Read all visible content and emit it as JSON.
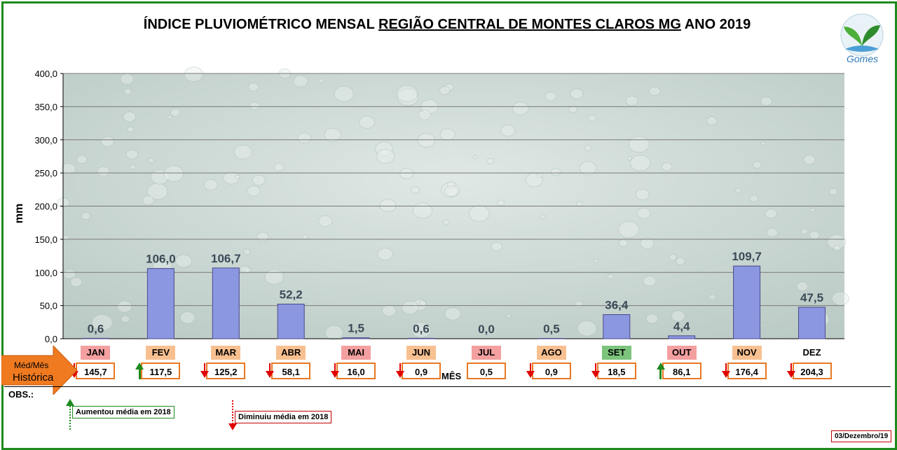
{
  "header": {
    "title_part1": "ÍNDICE PLUVIOMÉTRICO MENSAL ",
    "title_underlined": "REGIÃO CENTRAL DE MONTES CLAROS MG",
    "title_part2": " ANO 2019",
    "logo_text": "Gomes"
  },
  "chart_data": {
    "type": "bar",
    "categories": [
      "JAN",
      "FEV",
      "MAR",
      "ABR",
      "MAI",
      "JUN",
      "JUL",
      "AGO",
      "SET",
      "OUT",
      "NOV",
      "DEZ"
    ],
    "values": [
      0.6,
      106.0,
      106.7,
      52.2,
      1.5,
      0.6,
      0.0,
      0.5,
      36.4,
      4.4,
      109.7,
      47.5
    ],
    "value_labels": [
      "0,6",
      "106,0",
      "106,7",
      "52,2",
      "1,5",
      "0,6",
      "0,0",
      "0,5",
      "36,4",
      "4,4",
      "109,7",
      "47,5"
    ],
    "ylabel": "mm",
    "xlabel": "MÊS",
    "ylim": [
      0,
      400
    ],
    "yticks": [
      "0,0",
      "50,0",
      "100,0",
      "150,0",
      "200,0",
      "250,0",
      "300,0",
      "350,0",
      "400,0"
    ],
    "grid": true,
    "colors": {
      "bar": "#8b97e0",
      "bar_border": "#4a4a8a",
      "plot_bg": "#c9d6d2"
    }
  },
  "historical": {
    "label_line1": "Méd/Mês",
    "label_line2": "Histórica",
    "values": [
      "145,7",
      "117,5",
      "125,2",
      "58,1",
      "16,0",
      "0,9",
      "0,5",
      "0,9",
      "18,5",
      "86,1",
      "176,4",
      "204,3"
    ],
    "trend": [
      "down",
      "up",
      "down",
      "down",
      "down",
      "down",
      "none",
      "down",
      "down",
      "up",
      "down",
      "down"
    ],
    "tag_colors": [
      "#f4a0a0",
      "#f8c090",
      "#f8c090",
      "#f8c090",
      "#f4a0a0",
      "#f8c090",
      "#f4a0a0",
      "#f8c090",
      "#7cc47c",
      "#f4a0a0",
      "#f8c090",
      "#ffffff"
    ]
  },
  "obs": {
    "label": "OBS.:",
    "legend_up": "Aumentou média em 2018",
    "legend_down": "Diminuiu média em 2018",
    "date": "03/Dezembro/19"
  }
}
